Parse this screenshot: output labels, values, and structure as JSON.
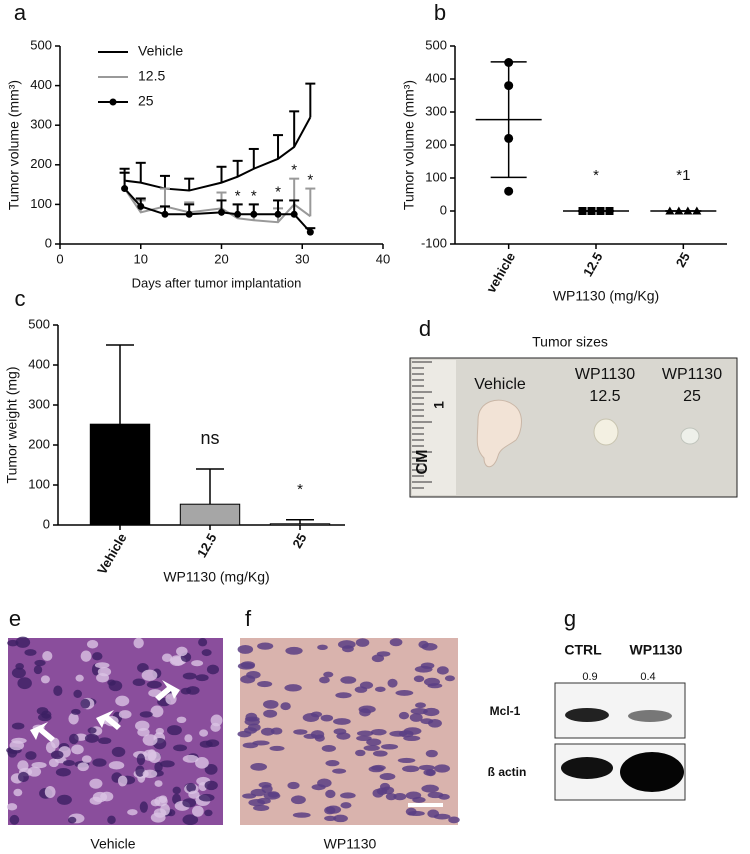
{
  "chart_data": [
    {
      "type": "line",
      "panel": "a",
      "xlabel": "Days after tumor implantation",
      "ylabel": "Tumor volume (mm³)",
      "x": [
        8,
        10,
        13,
        16,
        20,
        22,
        24,
        27,
        29,
        31
      ],
      "xlim": [
        0,
        40
      ],
      "xticks": [
        0,
        10,
        20,
        30,
        40
      ],
      "ylim": [
        0,
        500
      ],
      "yticks": [
        0,
        100,
        200,
        300,
        400,
        500
      ],
      "series": [
        {
          "name": "Vehicle",
          "color": "#000000",
          "marker": "none",
          "values": [
            160,
            155,
            140,
            135,
            155,
            170,
            190,
            215,
            245,
            320
          ],
          "errors": [
            30,
            50,
            32,
            30,
            40,
            40,
            50,
            60,
            90,
            85
          ]
        },
        {
          "name": "12.5",
          "color": "#999999",
          "marker": "none",
          "values": [
            140,
            80,
            95,
            80,
            90,
            65,
            60,
            55,
            100,
            70
          ],
          "errors": [
            40,
            30,
            45,
            25,
            40,
            35,
            40,
            35,
            65,
            70
          ]
        },
        {
          "name": "25",
          "color": "#000000",
          "marker": "circle",
          "values": [
            140,
            95,
            75,
            75,
            80,
            75,
            75,
            75,
            75,
            30
          ],
          "errors": [
            40,
            20,
            20,
            25,
            30,
            25,
            25,
            35,
            35,
            10
          ]
        }
      ],
      "significance": [
        null,
        null,
        null,
        null,
        null,
        "*",
        "*",
        "*",
        "*",
        "*"
      ]
    },
    {
      "type": "dot",
      "panel": "b",
      "xlabel": "WP1130 (mg/Kg)",
      "ylabel": "Tumor volume (mm³)",
      "categories": [
        "vehicle",
        "12.5",
        "25"
      ],
      "points": [
        [
          450,
          380,
          220,
          60
        ],
        [
          0,
          0,
          0,
          0
        ],
        [
          0,
          0,
          0,
          0
        ]
      ],
      "means": [
        277,
        0,
        0
      ],
      "sd": [
        175,
        0,
        0
      ],
      "markers": [
        "circle",
        "square",
        "triangle"
      ],
      "color": "#000000",
      "ylim": [
        -100,
        500
      ],
      "yticks": [
        -100,
        0,
        100,
        200,
        300,
        400,
        500
      ],
      "significance": [
        null,
        "*",
        "*1"
      ]
    },
    {
      "type": "bar",
      "panel": "c",
      "xlabel": "WP1130 (mg/Kg)",
      "ylabel": "Tumor weight (mg)",
      "categories": [
        "Vehicle",
        "12.5",
        "25"
      ],
      "values": [
        252,
        52,
        3
      ],
      "errors": [
        198,
        88,
        10
      ],
      "colors": [
        "#000000",
        "#a6a6a6",
        "#ffffff"
      ],
      "ylim": [
        0,
        500
      ],
      "yticks": [
        0,
        100,
        200,
        300,
        400,
        500
      ],
      "significance": [
        null,
        "ns",
        "*"
      ]
    }
  ],
  "photo_panel": {
    "label": "d",
    "title": "Tumor sizes",
    "ruler_unit": "CM",
    "ruler_mark": "1",
    "groups": [
      [
        "Vehicle"
      ],
      [
        "WP1130",
        "12.5"
      ],
      [
        "WP1130",
        "25"
      ]
    ]
  },
  "histology": [
    {
      "label": "e",
      "caption": "Vehicle"
    },
    {
      "label": "f",
      "caption": "WP1130"
    }
  ],
  "western_blot": {
    "label": "g",
    "lanes": [
      "CTRL",
      "WP1130"
    ],
    "ratios": [
      0.9,
      0.4
    ],
    "proteins": [
      "Mcl-1",
      "ß actin"
    ]
  }
}
